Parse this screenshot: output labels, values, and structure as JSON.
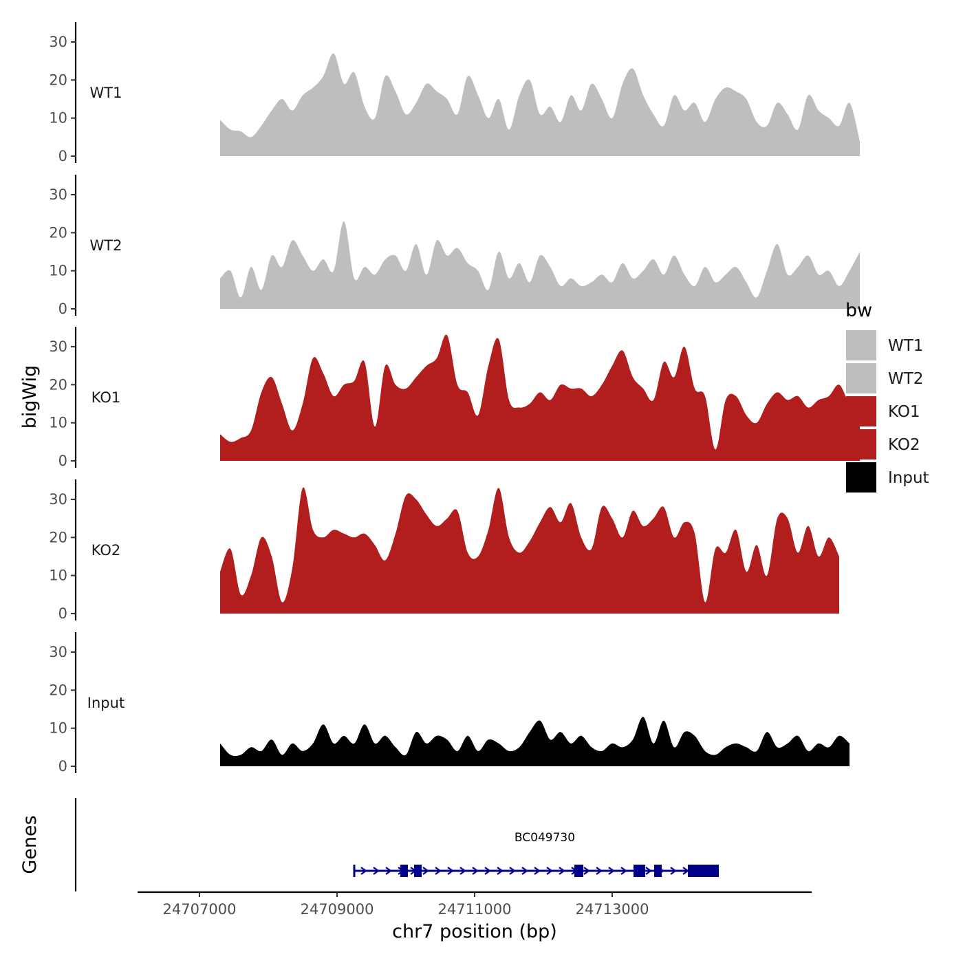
{
  "chart_data": {
    "type": "area",
    "xlabel": "chr7 position (bp)",
    "ylabel": "bigWig",
    "genes_label": "Genes",
    "xlim": [
      24706100,
      24715900
    ],
    "ylim": [
      0,
      35
    ],
    "x_ticks": [
      24707000,
      24709000,
      24711000,
      24713000
    ],
    "y_ticks": [
      0,
      10,
      20,
      30
    ],
    "legend": {
      "title": "bw",
      "position": "right",
      "entries": [
        {
          "label": "WT1",
          "color": "#bebebe"
        },
        {
          "label": "WT2",
          "color": "#bebebe"
        },
        {
          "label": "KO1",
          "color": "#b21e1e"
        },
        {
          "label": "KO2",
          "color": "#b21e1e"
        },
        {
          "label": "Input",
          "color": "#000000"
        }
      ]
    },
    "x_start": 24707300,
    "x_step": 150,
    "series": [
      {
        "name": "WT1",
        "color": "#bebebe",
        "values": [
          9.5,
          7,
          6.5,
          5,
          8,
          12,
          15,
          12,
          16,
          18,
          21,
          27,
          19,
          22,
          13,
          10,
          21,
          17,
          11,
          14,
          19,
          17,
          15,
          11,
          21,
          16,
          10,
          15,
          7,
          16,
          20,
          11,
          13,
          9,
          16,
          12,
          19,
          15,
          10,
          19,
          23,
          16,
          11,
          8,
          16,
          12,
          14,
          9,
          15,
          18,
          17,
          15,
          9,
          8,
          14,
          11,
          7,
          16,
          12,
          10,
          8,
          14,
          4
        ]
      },
      {
        "name": "WT2",
        "color": "#bebebe",
        "values": [
          8,
          10,
          3,
          11,
          5,
          14,
          11,
          18,
          14,
          10,
          13,
          10,
          23,
          8,
          11,
          9,
          13,
          14,
          10,
          17,
          9,
          18,
          14,
          16,
          12,
          10,
          5,
          15,
          8,
          12,
          7,
          14,
          11,
          6,
          8,
          6,
          7,
          9,
          7,
          12,
          8,
          10,
          13,
          9,
          14,
          9,
          6,
          11,
          7,
          9,
          11,
          7,
          3,
          10,
          17,
          9,
          11,
          14,
          9,
          10,
          6,
          10,
          15
        ]
      },
      {
        "name": "KO1",
        "color": "#b21e1e",
        "values": [
          7,
          5,
          6,
          8,
          18,
          22,
          15,
          8,
          15,
          27,
          23,
          17,
          20,
          21,
          26,
          9,
          25,
          20,
          19,
          22,
          25,
          27,
          33,
          20,
          18,
          12,
          25,
          32,
          16,
          14,
          15,
          18,
          16,
          20,
          19,
          19,
          17,
          20,
          25,
          29,
          22,
          19,
          16,
          26,
          22,
          30,
          19,
          17,
          3,
          16,
          17,
          12,
          10,
          15,
          18,
          16,
          17,
          14,
          16,
          17,
          20,
          15,
          14
        ]
      },
      {
        "name": "KO2",
        "color": "#b21e1e",
        "values": [
          11,
          17,
          5,
          10,
          20,
          15,
          3,
          12,
          33,
          22,
          20,
          22,
          21,
          20,
          21,
          18,
          14,
          21,
          31,
          30,
          26,
          23,
          25,
          27,
          16,
          15,
          22,
          33,
          20,
          16,
          19,
          24,
          28,
          24,
          29,
          20,
          17,
          28,
          25,
          20,
          27,
          23,
          25,
          28,
          20,
          24,
          21,
          3,
          17,
          16,
          22,
          11,
          18,
          10,
          25,
          25,
          16,
          23,
          15,
          20,
          15
        ]
      },
      {
        "name": "Input",
        "color": "#000000",
        "values": [
          6,
          3,
          3,
          5,
          4,
          7,
          3,
          6,
          4,
          6,
          11,
          6,
          8,
          6,
          11,
          6,
          8,
          5,
          3,
          9,
          6,
          8,
          7,
          4,
          8,
          4,
          7,
          6,
          4,
          5,
          9,
          12,
          7,
          9,
          6,
          8,
          5,
          4,
          6,
          5,
          7,
          13,
          6,
          12,
          5,
          9,
          8,
          4,
          3,
          5,
          6,
          5,
          4,
          9,
          5,
          6,
          8,
          4,
          6,
          5,
          8,
          6
        ]
      }
    ],
    "gene": {
      "name": "BC049730",
      "start": 24709250,
      "end": 24714550,
      "color": "#00008b",
      "exons": [
        [
          24709920,
          24710030
        ],
        [
          24710120,
          24710230
        ],
        [
          24712450,
          24712580
        ],
        [
          24713310,
          24713480
        ],
        [
          24713610,
          24713720
        ],
        [
          24714100,
          24714550
        ]
      ]
    }
  }
}
